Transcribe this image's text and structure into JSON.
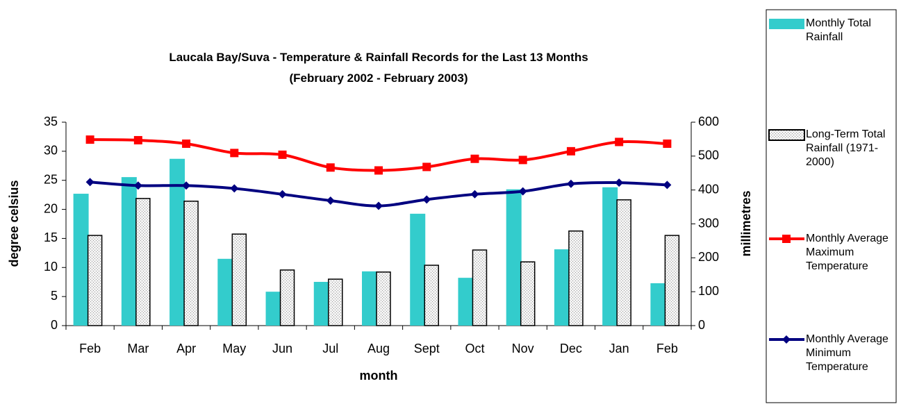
{
  "chart_data": {
    "type": "bar_line",
    "title": "Laucala Bay/Suva - Temperature & Rainfall Records for the Last 13 Months",
    "subtitle": "(February 2002 - February 2003)",
    "x_label": "month",
    "y_label": "degree celsius",
    "y2_label": "millimetres",
    "categories": [
      "Feb",
      "Mar",
      "Apr",
      "May",
      "Jun",
      "Jul",
      "Aug",
      "Sept",
      "Oct",
      "Nov",
      "Dec",
      "Jan",
      "Feb"
    ],
    "ylim": [
      0,
      35
    ],
    "yticks": [
      0,
      5,
      10,
      15,
      20,
      25,
      30,
      35
    ],
    "y2lim": [
      0,
      600
    ],
    "y2ticks": [
      0,
      100,
      200,
      300,
      400,
      500,
      600
    ],
    "series": [
      {
        "name": "Monthly Total Rainfall",
        "type": "bar",
        "axis": "y2",
        "color": "#33cccc",
        "values": [
          389,
          438,
          492,
          197,
          100,
          129,
          160,
          330,
          141,
          402,
          225,
          408,
          125
        ]
      },
      {
        "name": "Long-Term Total Rainfall (1971-2000)",
        "type": "bar",
        "axis": "y2",
        "color": "#e6e6e6",
        "values": [
          266,
          375,
          367,
          270,
          164,
          137,
          158,
          178,
          223,
          188,
          279,
          371,
          266
        ]
      },
      {
        "name": "Monthly Average Maximum Temperature",
        "type": "line",
        "color": "#ff0000",
        "values": [
          32.0,
          31.9,
          31.3,
          29.7,
          29.4,
          27.2,
          26.7,
          27.3,
          28.7,
          28.5,
          30.0,
          31.6,
          31.3
        ]
      },
      {
        "name": "Monthly Average Minimum Temperature",
        "type": "line",
        "color": "#000080",
        "values": [
          24.7,
          24.1,
          24.1,
          23.6,
          22.6,
          21.5,
          20.6,
          21.7,
          22.6,
          23.1,
          24.4,
          24.6,
          24.2
        ]
      }
    ]
  }
}
